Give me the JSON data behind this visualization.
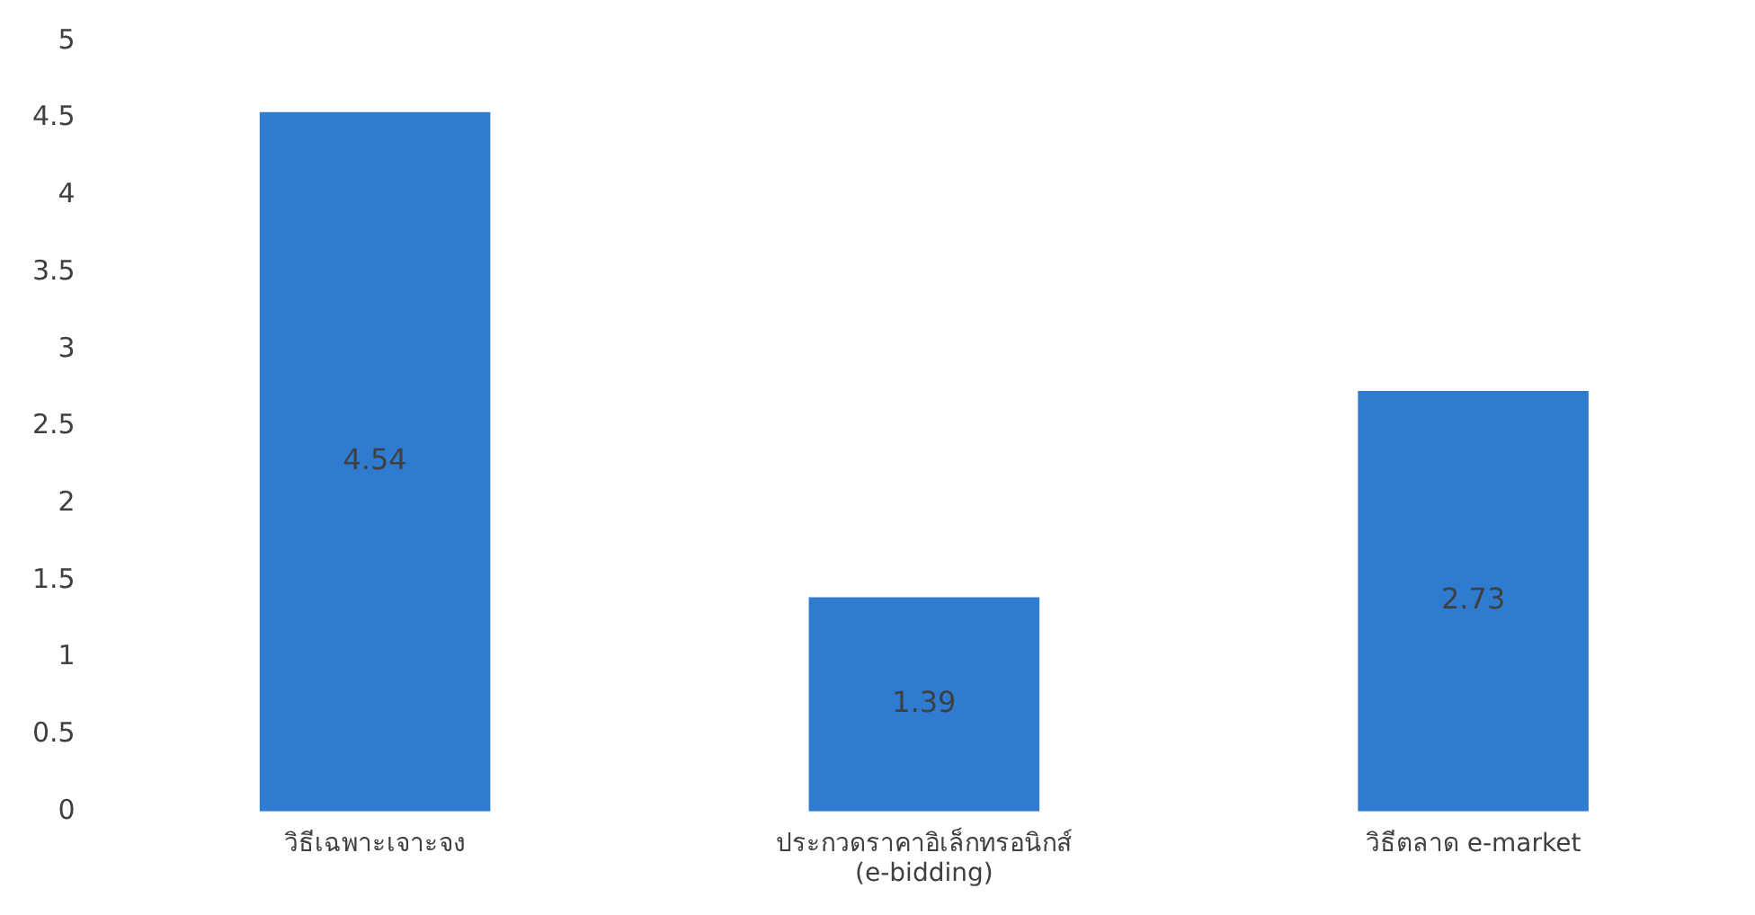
{
  "chart_data": {
    "type": "bar",
    "categories": [
      "วิธีเฉพาะเจาะจง",
      "ประกวดราคาอิเล็กทรอนิกส์ (e-bidding)",
      "วิธีตลาด e-market"
    ],
    "values": [
      4.54,
      1.39,
      2.73
    ],
    "color": "#2e7bd0",
    "ylim": [
      0,
      5
    ],
    "yticks": [
      0,
      0.5,
      1,
      1.5,
      2,
      2.5,
      3,
      3.5,
      4,
      4.5,
      5
    ],
    "grid": false,
    "legend": false,
    "data_labels": true
  }
}
